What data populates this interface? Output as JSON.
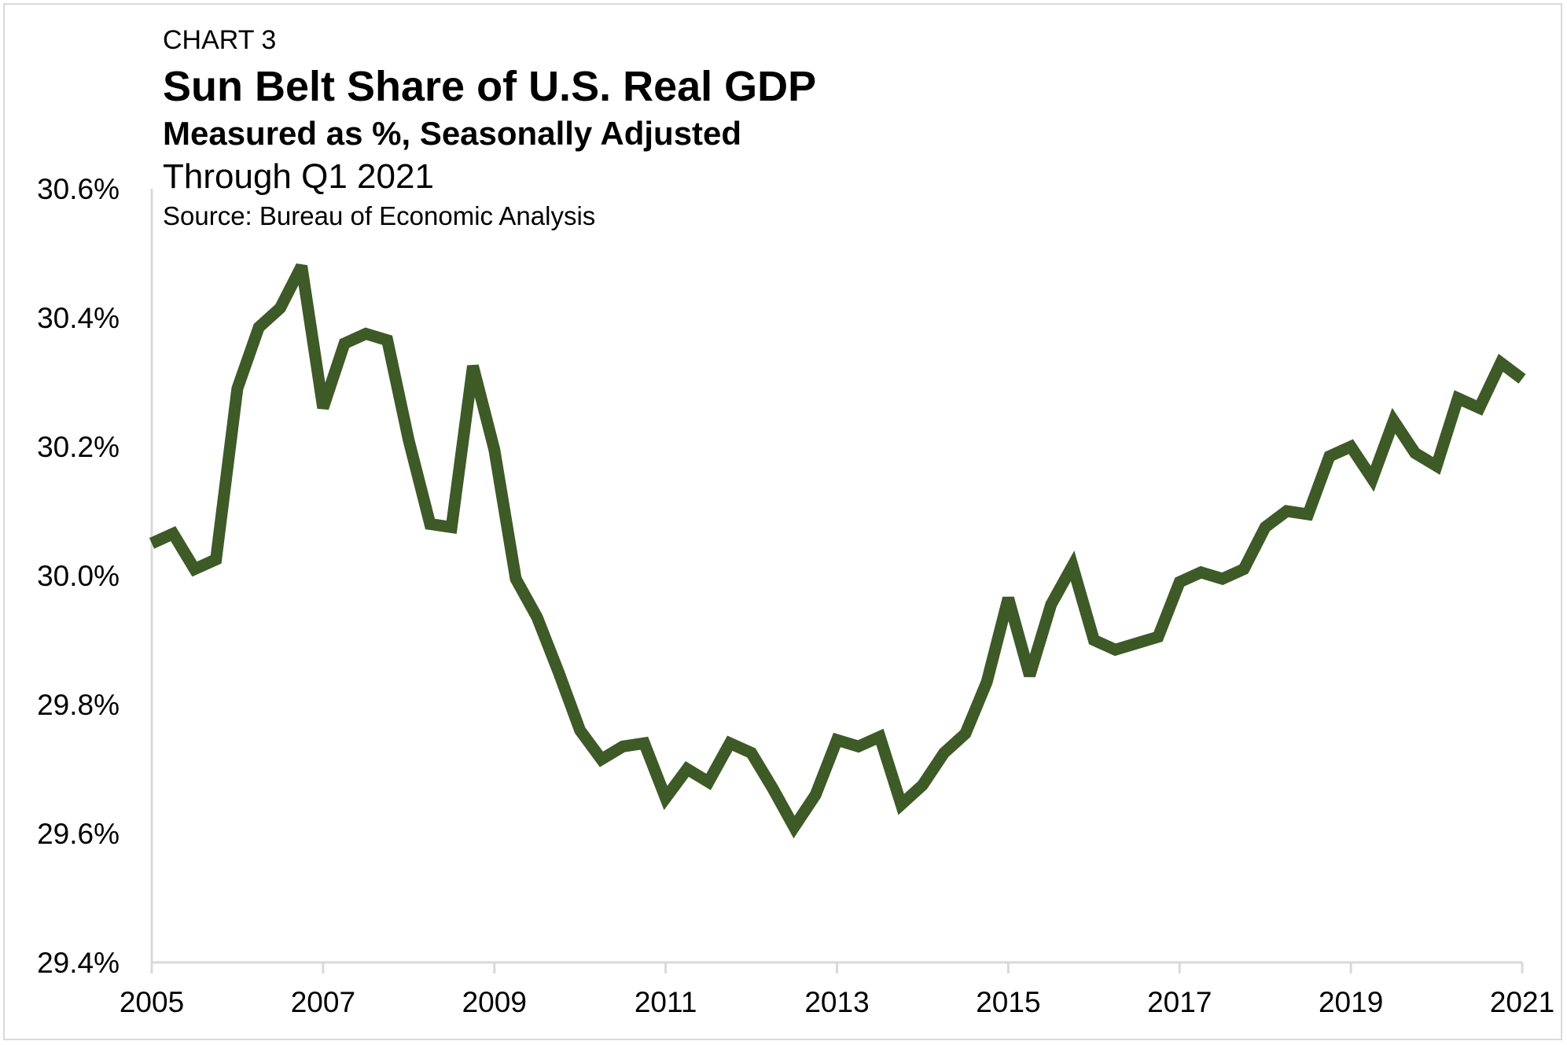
{
  "header": {
    "label": "CHART 3",
    "title": "Sun Belt Share of U.S. Real GDP",
    "subtitle": "Measured as %, Seasonally Adjusted",
    "through": "Through Q1 2021",
    "source": "Source: Bureau of Economic Analysis"
  },
  "chart_data": {
    "type": "line",
    "title": "Sun Belt Share of U.S. Real GDP",
    "subtitle": "Measured as %, Seasonally Adjusted",
    "xlabel": "",
    "ylabel": "",
    "xlim": [
      2005,
      2021
    ],
    "ylim": [
      29.4,
      30.6
    ],
    "y_ticks": [
      29.4,
      29.6,
      29.8,
      30.0,
      30.2,
      30.4,
      30.6
    ],
    "y_tick_labels": [
      "29.4%",
      "29.6%",
      "29.8%",
      "30.0%",
      "30.2%",
      "30.4%",
      "30.6%"
    ],
    "x_ticks": [
      2005,
      2007,
      2009,
      2011,
      2013,
      2015,
      2017,
      2019,
      2021
    ],
    "x_tick_labels": [
      "2005",
      "2007",
      "2009",
      "2011",
      "2013",
      "2015",
      "2017",
      "2019",
      "2021"
    ],
    "grid": false,
    "line_color": "#3d5a27",
    "series": [
      {
        "x": [
          "2005 Q1",
          "2005 Q2",
          "2005 Q3",
          "2005 Q4",
          "2006 Q1",
          "2006 Q2",
          "2006 Q3",
          "2006 Q4",
          "2007 Q1",
          "2007 Q2",
          "2007 Q3",
          "2007 Q4",
          "2008 Q1",
          "2008 Q2",
          "2008 Q3",
          "2008 Q4",
          "2009 Q1",
          "2009 Q2",
          "2009 Q3",
          "2009 Q4",
          "2010 Q1",
          "2010 Q2",
          "2010 Q3",
          "2010 Q4",
          "2011 Q1",
          "2011 Q2",
          "2011 Q3",
          "2011 Q4",
          "2012 Q1",
          "2012 Q2",
          "2012 Q3",
          "2012 Q4",
          "2013 Q1",
          "2013 Q2",
          "2013 Q3",
          "2013 Q4",
          "2014 Q1",
          "2014 Q2",
          "2014 Q3",
          "2014 Q4",
          "2015 Q1",
          "2015 Q2",
          "2015 Q3",
          "2015 Q4",
          "2016 Q1",
          "2016 Q2",
          "2016 Q3",
          "2016 Q4",
          "2017 Q1",
          "2017 Q2",
          "2017 Q3",
          "2017 Q4",
          "2018 Q1",
          "2018 Q2",
          "2018 Q3",
          "2018 Q4",
          "2019 Q1",
          "2019 Q2",
          "2019 Q3",
          "2019 Q4",
          "2020 Q1",
          "2020 Q2",
          "2020 Q3",
          "2020 Q4",
          "2021 Q1"
        ],
        "values": [
          30.05,
          30.065,
          30.01,
          30.025,
          30.29,
          30.385,
          30.415,
          30.48,
          30.26,
          30.36,
          30.375,
          30.365,
          30.21,
          30.08,
          30.075,
          30.325,
          30.195,
          29.995,
          29.935,
          29.85,
          29.76,
          29.715,
          29.735,
          29.74,
          29.655,
          29.7,
          29.68,
          29.74,
          29.725,
          29.67,
          29.61,
          29.66,
          29.745,
          29.735,
          29.75,
          29.645,
          29.675,
          29.725,
          29.755,
          29.835,
          29.965,
          29.845,
          29.955,
          30.015,
          29.9,
          29.885,
          29.895,
          29.905,
          29.99,
          30.005,
          29.995,
          30.01,
          30.075,
          30.1,
          30.095,
          30.185,
          30.2,
          30.15,
          30.24,
          30.19,
          30.17,
          30.275,
          30.26,
          30.33,
          30.305
        ]
      }
    ]
  }
}
